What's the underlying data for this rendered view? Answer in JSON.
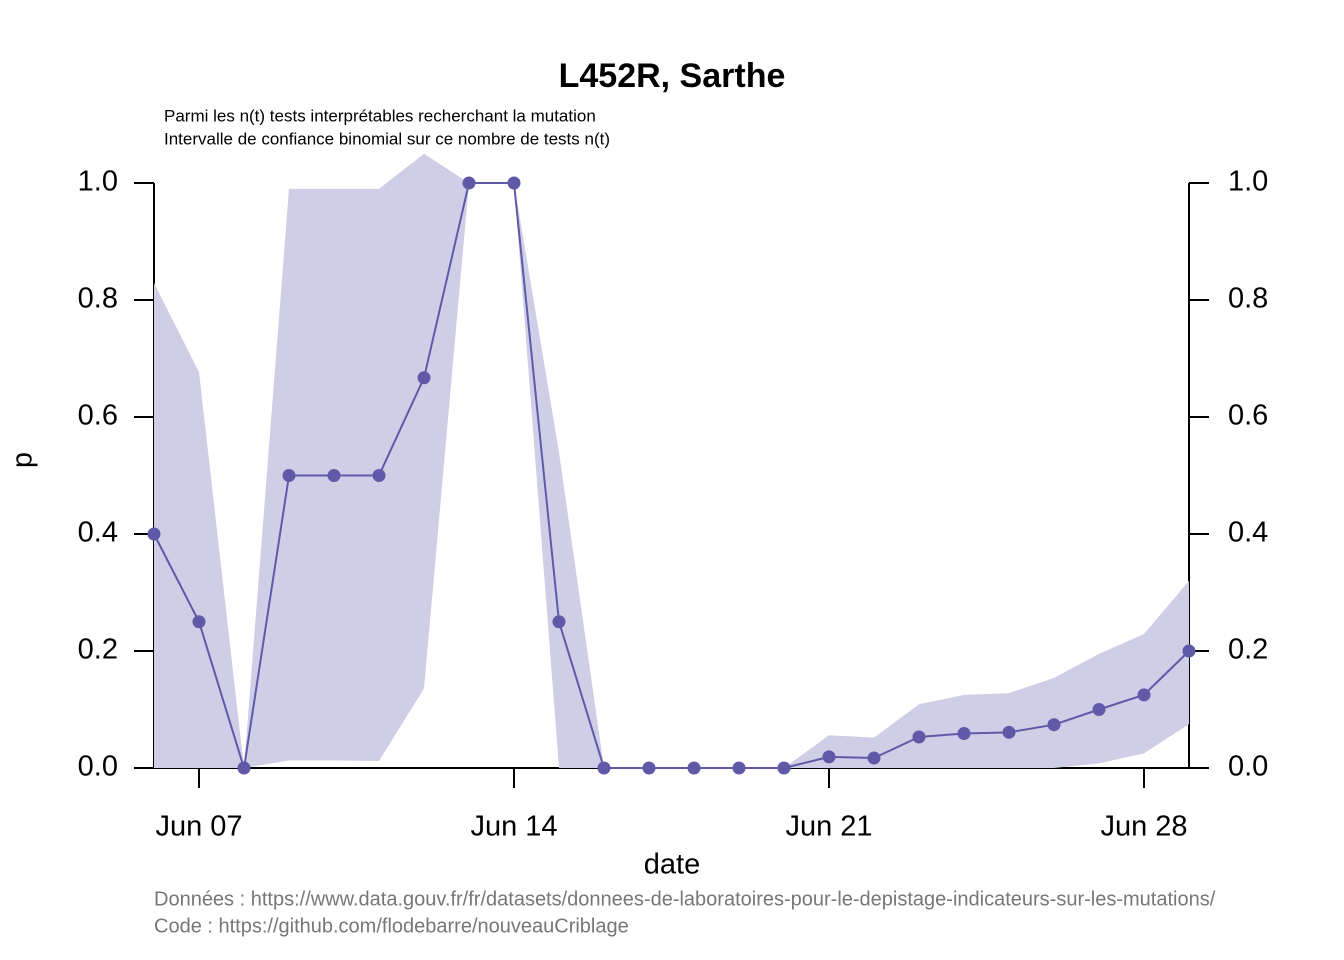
{
  "chart_data": {
    "type": "line",
    "title": "L452R, Sarthe",
    "subtitle": [
      "Parmi les n(t) tests interprétables recherchant la mutation",
      "Intervalle de confiance binomial sur ce nombre de tests n(t)"
    ],
    "xlabel": "date",
    "ylabel": "p",
    "footer": [
      "Données : https://www.data.gouv.fr/fr/datasets/donnees-de-laboratoires-pour-le-depistage-indicateurs-sur-les-mutations/",
      "Code : https://github.com/flodebarre/nouveauCriblage"
    ],
    "x": [
      "Jun 06",
      "Jun 07",
      "Jun 08",
      "Jun 09",
      "Jun 10",
      "Jun 11",
      "Jun 12",
      "Jun 13",
      "Jun 14",
      "Jun 15",
      "Jun 16",
      "Jun 17",
      "Jun 18",
      "Jun 19",
      "Jun 20",
      "Jun 21",
      "Jun 22",
      "Jun 23",
      "Jun 24",
      "Jun 25",
      "Jun 26",
      "Jun 27",
      "Jun 28",
      "Jun 29"
    ],
    "xticks": [
      "Jun 07",
      "Jun 14",
      "Jun 21",
      "Jun 28"
    ],
    "ylim": [
      0,
      1
    ],
    "yticks": [
      {
        "value": 0,
        "label": "0.0"
      },
      0.2,
      0.4,
      0.6,
      0.8,
      {
        "value": 1,
        "label": "1.0"
      }
    ],
    "series": [
      {
        "color": "#6059a8",
        "band_color": "#d0cee6",
        "values": [
          0.4,
          0.25,
          0,
          0.5,
          0.5,
          0.5,
          0.667,
          1,
          1,
          0.25,
          0,
          0,
          0,
          0,
          0,
          0.019,
          0.017,
          0.053,
          0.059,
          0.061,
          0.074,
          0.1,
          0.125,
          0.2
        ],
        "upper": [
          0.829,
          0.677,
          0,
          0.99,
          0.99,
          0.99,
          1.05,
          1,
          1,
          0.54,
          0,
          0,
          0,
          0,
          0,
          0.056,
          0.052,
          0.109,
          0.125,
          0.128,
          0.154,
          0.195,
          0.229,
          0.32
        ],
        "lower": [
          0,
          0,
          0,
          0.013,
          0.013,
          0.012,
          0.136,
          1,
          1,
          0,
          0,
          0,
          0,
          0,
          0,
          0,
          0,
          0,
          0,
          0,
          0,
          0.008,
          0.025,
          0.075
        ]
      }
    ]
  }
}
